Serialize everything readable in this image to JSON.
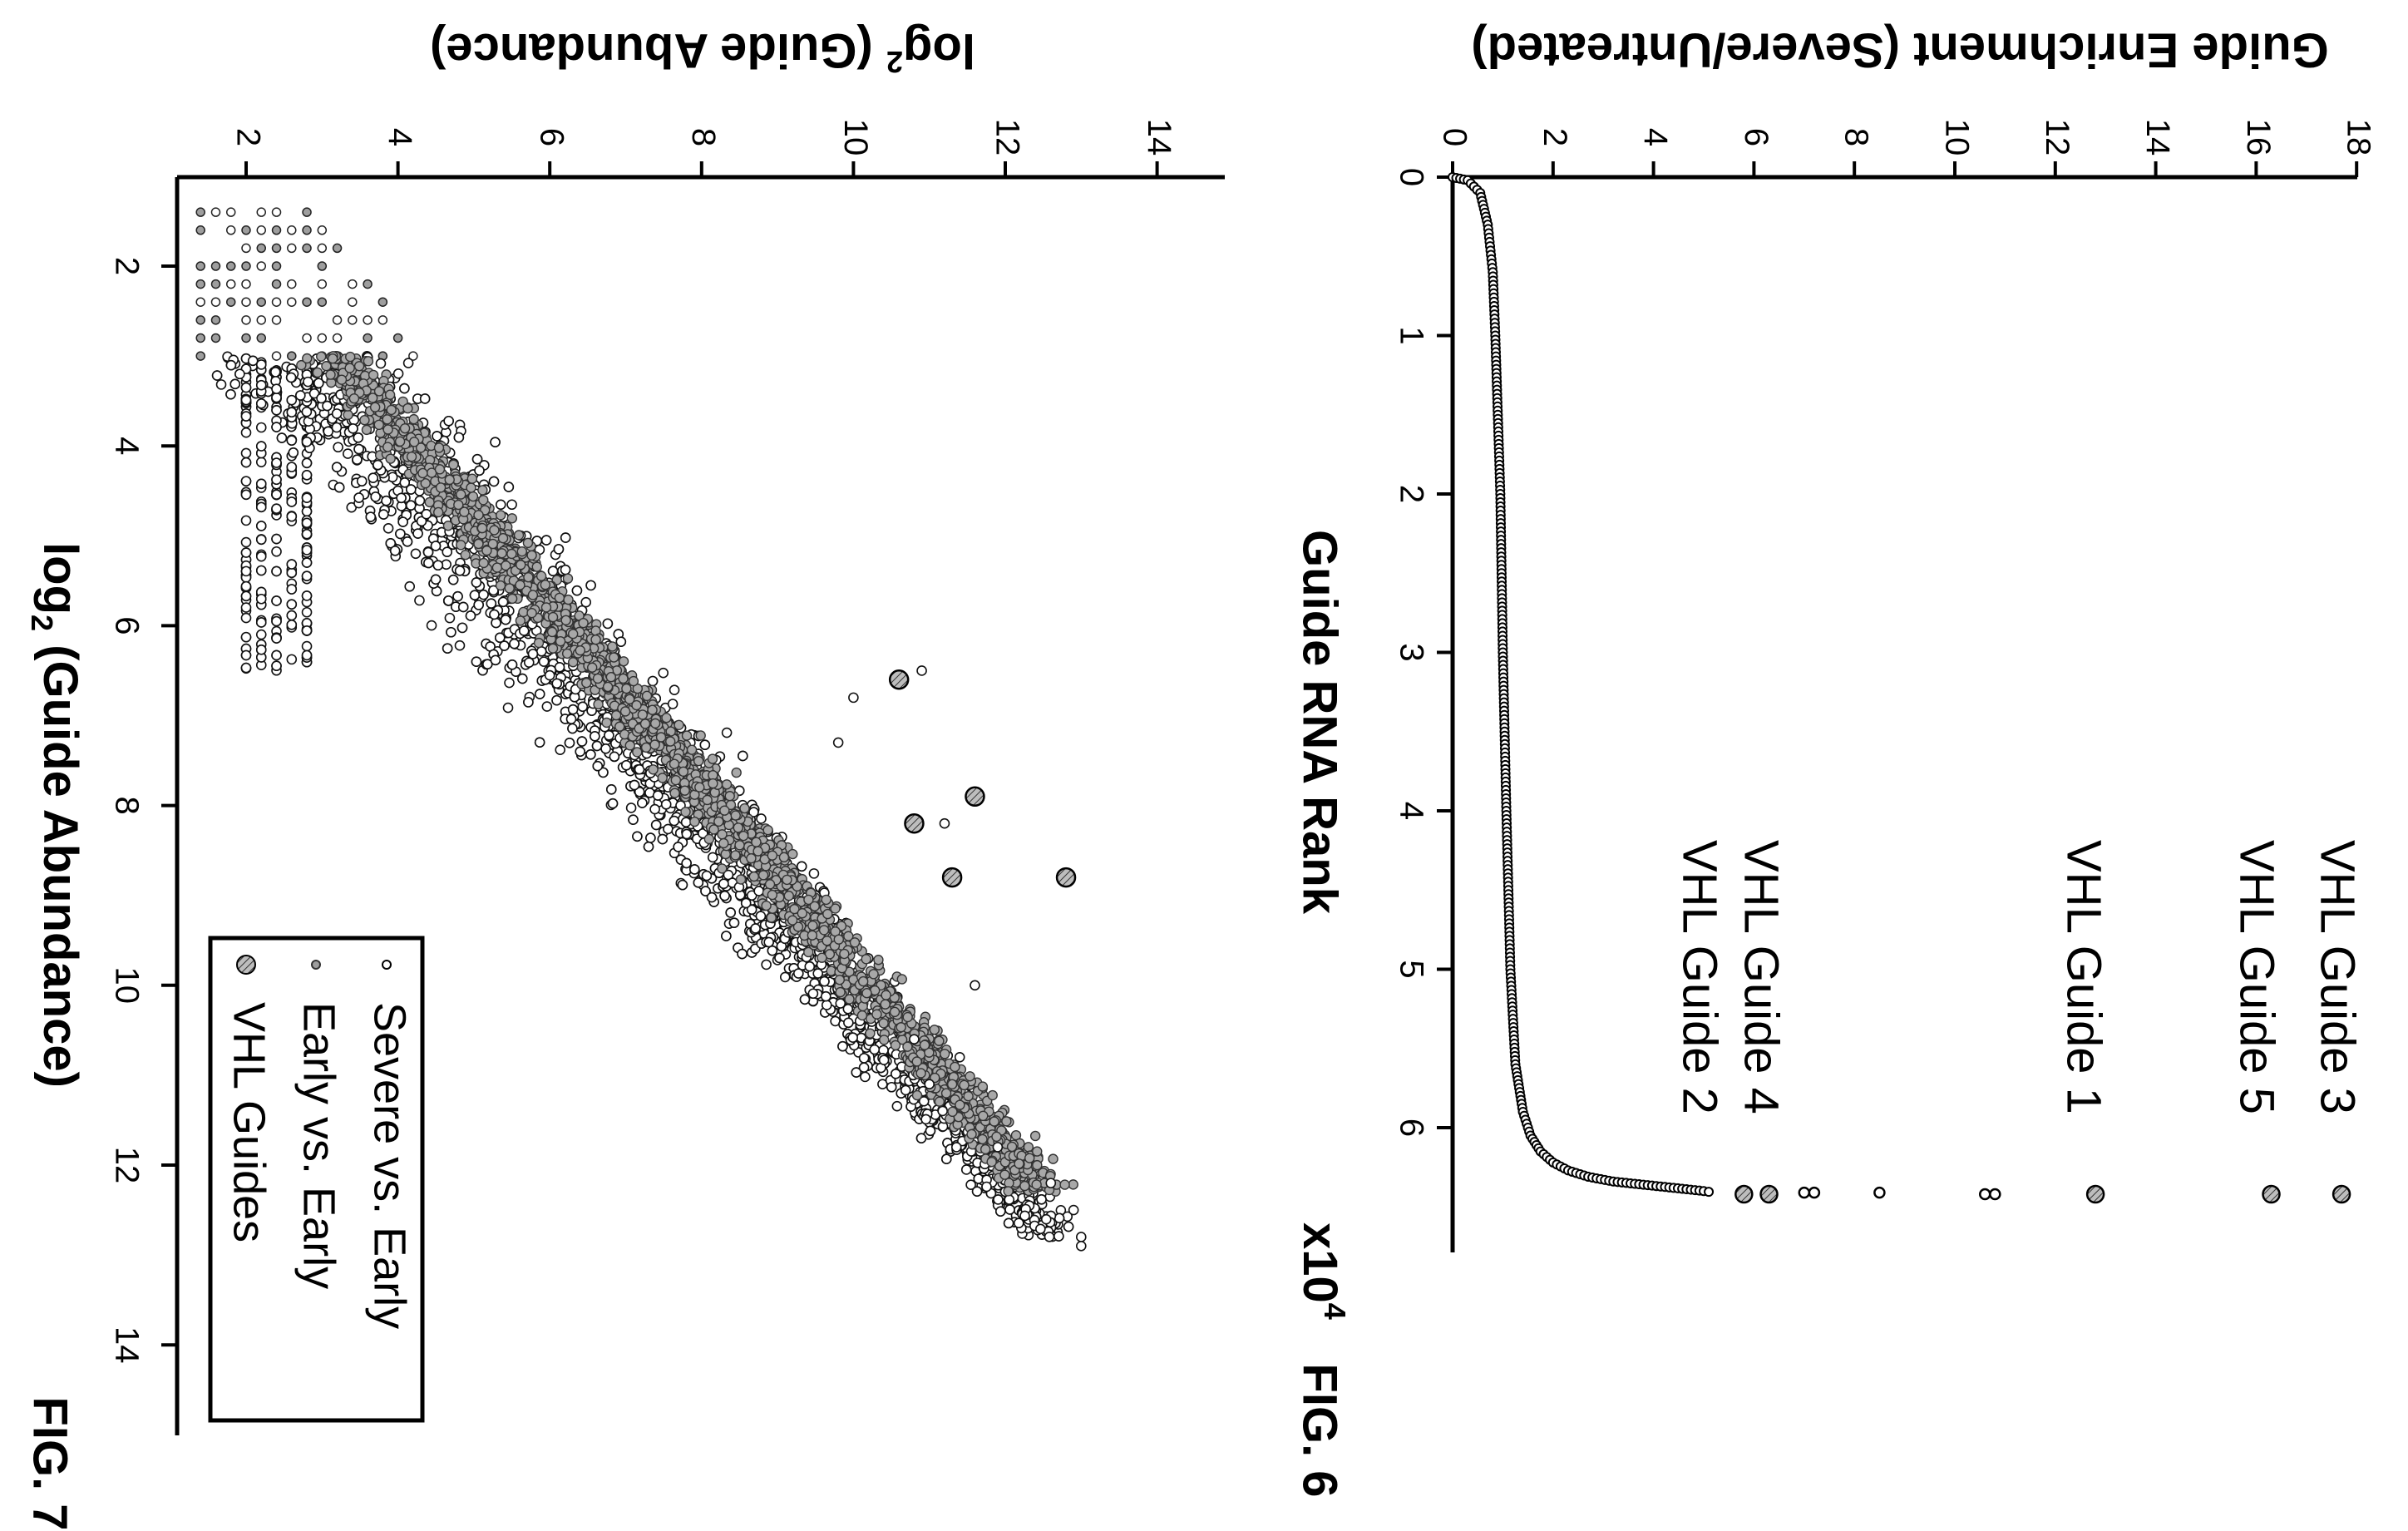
{
  "chart_data": [
    {
      "figure": "FIG. 6",
      "type": "scatter",
      "xlabel": "Guide RNA Rank",
      "x_multiplier": "x10",
      "x_multiplier_exp": "4",
      "ylabel": "Guide Enrichment (Severe/Untreated)",
      "xlim": [
        0,
        6.8
      ],
      "ylim": [
        0,
        18
      ],
      "xticks": [
        0,
        1,
        2,
        3,
        4,
        5,
        6
      ],
      "yticks": [
        0,
        2,
        4,
        6,
        8,
        10,
        12,
        14,
        16,
        18
      ],
      "curve": [
        [
          0,
          0
        ],
        [
          0.02,
          0.3
        ],
        [
          0.1,
          0.55
        ],
        [
          0.3,
          0.7
        ],
        [
          0.6,
          0.8
        ],
        [
          1.0,
          0.85
        ],
        [
          2.0,
          0.95
        ],
        [
          3.0,
          1.0
        ],
        [
          4.0,
          1.07
        ],
        [
          5.0,
          1.15
        ],
        [
          5.6,
          1.25
        ],
        [
          5.9,
          1.4
        ],
        [
          6.05,
          1.55
        ],
        [
          6.15,
          1.75
        ],
        [
          6.22,
          2.0
        ],
        [
          6.27,
          2.3
        ],
        [
          6.31,
          2.7
        ],
        [
          6.34,
          3.2
        ],
        [
          6.36,
          3.8
        ],
        [
          6.38,
          4.4
        ],
        [
          6.4,
          5.0
        ],
        [
          6.41,
          5.2
        ]
      ],
      "outliers": [
        {
          "x": 6.41,
          "y": 7.2
        },
        {
          "x": 6.41,
          "y": 7.0
        },
        {
          "x": 6.41,
          "y": 8.5
        },
        {
          "x": 6.42,
          "y": 10.6
        },
        {
          "x": 6.42,
          "y": 10.8
        }
      ],
      "highlighted": [
        {
          "label": "VHL Guide 3",
          "x": 6.42,
          "y": 17.7
        },
        {
          "label": "VHL Guide 5",
          "x": 6.42,
          "y": 16.3
        },
        {
          "label": "VHL Guide 1",
          "x": 6.42,
          "y": 12.8
        },
        {
          "label": "VHL Guide 4",
          "x": 6.42,
          "y": 6.3
        },
        {
          "label": "VHL Guide 2",
          "x": 6.42,
          "y": 5.8
        }
      ]
    },
    {
      "figure": "FIG. 7",
      "type": "scatter",
      "xlabel_main": "log",
      "xlabel_sub": "2",
      "xlabel_rest": " (Guide Abundance)",
      "ylabel_main": "log",
      "ylabel_sub": "2",
      "ylabel_rest": " (Guide Abundance)",
      "xlim": [
        1,
        15
      ],
      "ylim": [
        1,
        15
      ],
      "xticks": [
        2,
        4,
        6,
        8,
        10,
        12,
        14
      ],
      "yticks": [
        2,
        4,
        6,
        8,
        10,
        12,
        14
      ],
      "series": [
        {
          "name": "Severe vs. Early",
          "marker": "open-circle"
        },
        {
          "name": "Early vs. Early",
          "marker": "gray-dot"
        },
        {
          "name": "VHL Guides",
          "marker": "hatched-circle"
        }
      ],
      "vhl_points": [
        [
          6.6,
          10.6
        ],
        [
          7.9,
          11.6
        ],
        [
          8.2,
          10.8
        ],
        [
          8.8,
          11.3
        ],
        [
          8.8,
          12.8
        ]
      ]
    }
  ],
  "labels": {
    "fig6": "FIG. 6",
    "fig7": "FIG. 7"
  }
}
